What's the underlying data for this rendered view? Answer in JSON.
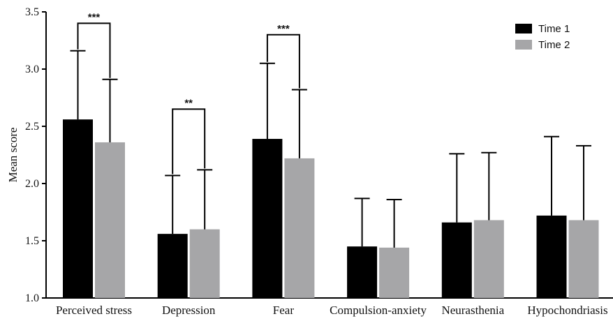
{
  "chart_data": {
    "type": "bar",
    "categories": [
      "Perceived stress",
      "Depression",
      "Fear",
      "Compulsion-anxiety",
      "Neurasthenia",
      "Hypochondriasis"
    ],
    "series": [
      {
        "name": "Time 1",
        "color": "#000000",
        "values": [
          2.56,
          1.56,
          2.39,
          1.45,
          1.66,
          1.72
        ],
        "error_upper": [
          3.16,
          2.07,
          3.05,
          1.87,
          2.26,
          2.41
        ]
      },
      {
        "name": "Time 2",
        "color": "#a6a6a8",
        "values": [
          2.36,
          1.6,
          2.22,
          1.44,
          1.68,
          1.68
        ],
        "error_upper": [
          2.91,
          2.12,
          2.82,
          1.86,
          2.27,
          2.33
        ]
      }
    ],
    "ylabel": "Mean score",
    "xlabel": "",
    "ylim": [
      1.0,
      3.5
    ],
    "yticks": [
      "1.0",
      "1.5",
      "2.0",
      "2.5",
      "3.0",
      "3.5"
    ],
    "legend_position": "top-right",
    "grid": false,
    "significance": [
      {
        "category_index": 0,
        "label": "***",
        "y": 3.4
      },
      {
        "category_index": 1,
        "label": "**",
        "y": 2.65
      },
      {
        "category_index": 2,
        "label": "***",
        "y": 3.3
      }
    ]
  }
}
